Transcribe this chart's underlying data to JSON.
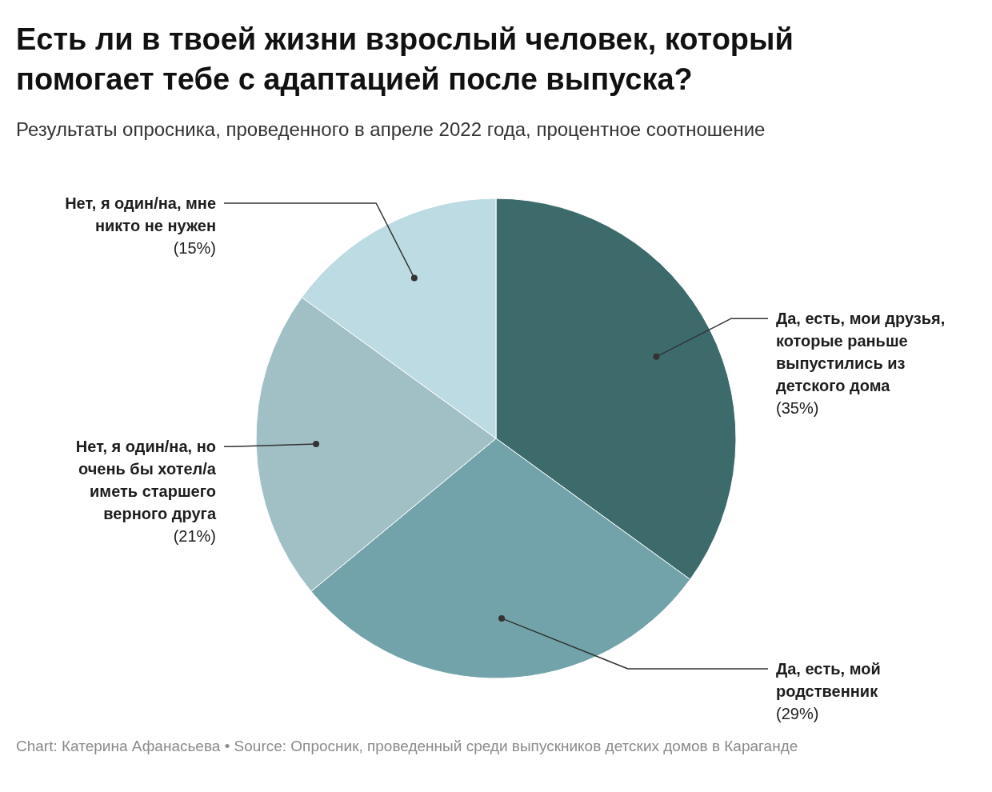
{
  "chart_data": {
    "type": "pie",
    "title": "Есть ли в твоей жизни взрослый человек, который помогает тебе с адаптацией после выпуска?",
    "subtitle": "Результаты опросника, проведенного в апреле 2022 года, процентное соотношение",
    "categories": [
      "Да, есть, мои друзья, которые раньше выпустились из детского дома",
      "Да, есть, мой родственник",
      "Нет, я один/на, но очень бы хотел/а иметь старшего верного друга",
      "Нет, я один/на, мне никто не нужен"
    ],
    "values": [
      35,
      29,
      21,
      15
    ],
    "value_labels": [
      "(35%)",
      "(29%)",
      "(21%)",
      "(15%)"
    ],
    "colors": [
      "#3d6b6c",
      "#72a3ab",
      "#a1c0c6",
      "#bddbe2"
    ],
    "annotations": [
      "Chart: Катерина Афанасьева • Source: Опросник, проведенный среди выпускников детских домов в Караганде"
    ]
  }
}
